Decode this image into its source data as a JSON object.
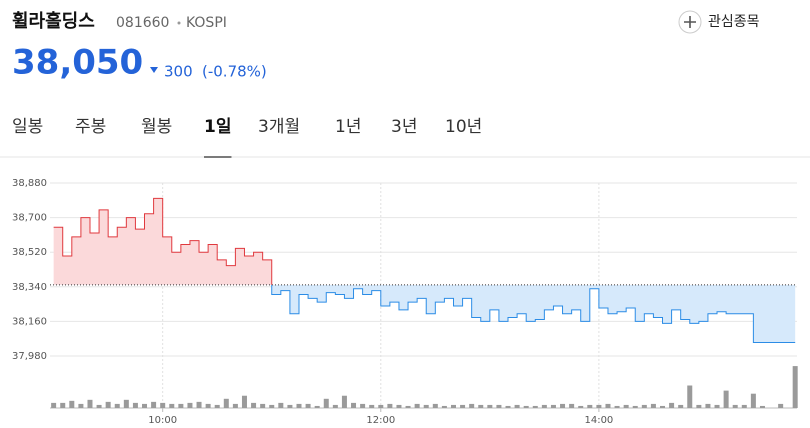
{
  "header": {
    "name": "휠라홀딩스",
    "code": "081660",
    "market": "KOSPI",
    "watch_label": "관심종목"
  },
  "price": {
    "value": "38,050",
    "change": "300",
    "change_pct": "(-0.78%)"
  },
  "tabs": [
    "일봉",
    "주봉",
    "월봉",
    "1일",
    "3개월",
    "1년",
    "3년",
    "10년"
  ],
  "selected_tab": 3,
  "chart_data": [
    {
      "type": "line",
      "baseline": 38350,
      "up_color": "#e0393e",
      "down_color": "#2b8ce6",
      "up_fill": "#fbd9da",
      "down_fill": "#d6e9fb",
      "x": [
        540,
        545,
        550,
        555,
        560,
        565,
        570,
        575,
        580,
        585,
        590,
        595,
        600,
        605,
        610,
        615,
        620,
        625,
        630,
        635,
        640,
        645,
        650,
        655,
        660,
        665,
        670,
        675,
        680,
        685,
        690,
        695,
        700,
        705,
        710,
        715,
        720,
        725,
        730,
        735,
        740,
        745,
        750,
        755,
        760,
        765,
        770,
        775,
        780,
        785,
        790,
        795,
        800,
        805,
        810,
        815,
        820,
        825,
        830,
        835,
        840,
        845,
        850,
        855,
        860,
        865,
        870,
        875,
        880,
        885,
        890,
        895,
        900,
        905,
        910,
        915,
        920,
        925,
        930,
        940,
        948
      ],
      "values": [
        38650,
        38500,
        38600,
        38700,
        38620,
        38740,
        38600,
        38650,
        38700,
        38640,
        38720,
        38800,
        38600,
        38520,
        38560,
        38580,
        38520,
        38560,
        38480,
        38450,
        38540,
        38500,
        38520,
        38480,
        38300,
        38320,
        38200,
        38300,
        38280,
        38260,
        38310,
        38300,
        38280,
        38330,
        38300,
        38320,
        38240,
        38260,
        38220,
        38260,
        38280,
        38200,
        38260,
        38280,
        38240,
        38280,
        38180,
        38160,
        38220,
        38160,
        38180,
        38200,
        38160,
        38170,
        38220,
        38240,
        38200,
        38220,
        38160,
        38330,
        38230,
        38200,
        38210,
        38230,
        38160,
        38200,
        38180,
        38150,
        38220,
        38170,
        38150,
        38160,
        38200,
        38210,
        38200,
        38200,
        38200,
        38050,
        38050,
        38050,
        38050
      ],
      "xlim": [
        538,
        949
      ],
      "ylim": [
        37980,
        38880
      ],
      "yticks": [
        {
          "value": 37980,
          "label": "37,980"
        },
        {
          "value": 38160,
          "label": "38,160"
        },
        {
          "value": 38340,
          "label": "38,340"
        },
        {
          "value": 38520,
          "label": "38,520"
        },
        {
          "value": 38700,
          "label": "38,700"
        },
        {
          "value": 38880,
          "label": "38,880"
        }
      ],
      "xticks": [
        {
          "value": 600,
          "label": "10:00"
        },
        {
          "value": 720,
          "label": "12:00"
        },
        {
          "value": 840,
          "label": "14:00"
        }
      ],
      "grid": true
    },
    {
      "type": "bar",
      "color": "#9a9a9a",
      "ylim": [
        0,
        45
      ],
      "x": [
        540,
        545,
        550,
        555,
        560,
        565,
        570,
        575,
        580,
        585,
        590,
        595,
        600,
        605,
        610,
        615,
        620,
        625,
        630,
        635,
        640,
        645,
        650,
        655,
        660,
        665,
        670,
        675,
        680,
        685,
        690,
        695,
        700,
        705,
        710,
        715,
        720,
        725,
        730,
        735,
        740,
        745,
        750,
        755,
        760,
        765,
        770,
        775,
        780,
        785,
        790,
        795,
        800,
        805,
        810,
        815,
        820,
        825,
        830,
        835,
        840,
        845,
        850,
        855,
        860,
        865,
        870,
        875,
        880,
        885,
        890,
        895,
        900,
        905,
        910,
        915,
        920,
        925,
        930,
        940,
        948
      ],
      "values": [
        5,
        5,
        7,
        4,
        8,
        3,
        6,
        4,
        8,
        5,
        4,
        6,
        5,
        4,
        4,
        5,
        6,
        4,
        3,
        9,
        4,
        12,
        5,
        4,
        3,
        5,
        3,
        4,
        4,
        2,
        9,
        3,
        12,
        5,
        4,
        3,
        3,
        4,
        3,
        2,
        4,
        3,
        4,
        2,
        3,
        3,
        4,
        3,
        3,
        3,
        2,
        3,
        2,
        2,
        3,
        3,
        4,
        4,
        2,
        3,
        3,
        4,
        2,
        3,
        2,
        3,
        4,
        2,
        5,
        3,
        22,
        3,
        4,
        3,
        17,
        3,
        3,
        14,
        2,
        4,
        41
      ]
    }
  ]
}
